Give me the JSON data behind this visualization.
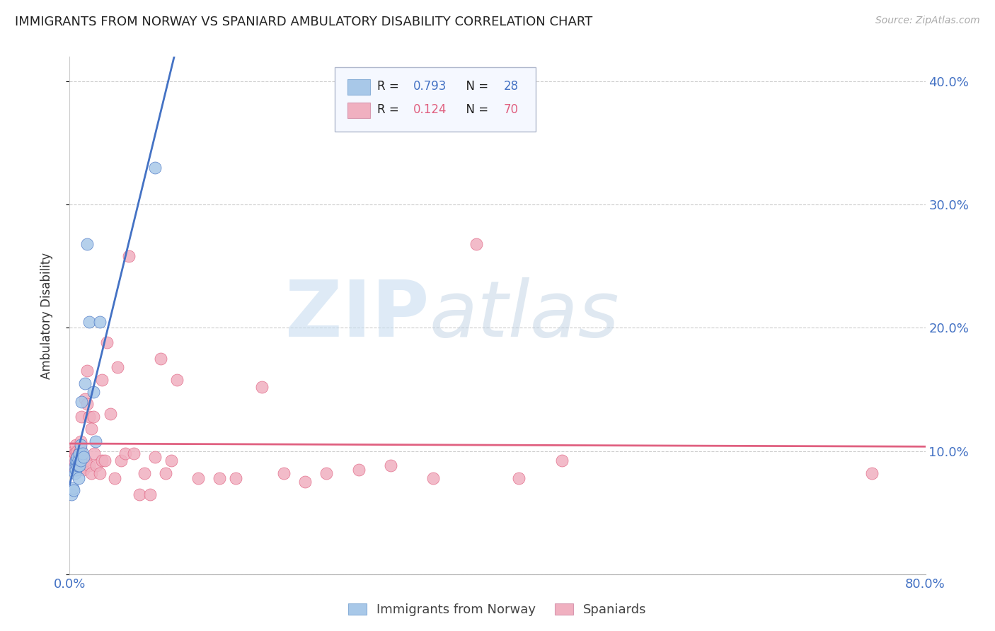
{
  "title": "IMMIGRANTS FROM NORWAY VS SPANIARD AMBULATORY DISABILITY CORRELATION CHART",
  "source": "Source: ZipAtlas.com",
  "ylabel": "Ambulatory Disability",
  "xlim": [
    0.0,
    0.8
  ],
  "ylim": [
    0.0,
    0.42
  ],
  "ytick_vals": [
    0.0,
    0.1,
    0.2,
    0.3,
    0.4
  ],
  "ytick_labels_right": [
    "",
    "10.0%",
    "20.0%",
    "30.0%",
    "40.0%"
  ],
  "norway_R": 0.793,
  "norway_N": 28,
  "spain_R": 0.124,
  "spain_N": 70,
  "norway_color": "#a8c8e8",
  "spain_color": "#f0b0c0",
  "norway_line_color": "#4472c4",
  "spain_line_color": "#e06080",
  "norway_x": [
    0.002,
    0.003,
    0.004,
    0.005,
    0.005,
    0.006,
    0.006,
    0.006,
    0.007,
    0.007,
    0.007,
    0.008,
    0.008,
    0.008,
    0.009,
    0.009,
    0.01,
    0.01,
    0.011,
    0.012,
    0.013,
    0.014,
    0.016,
    0.018,
    0.022,
    0.024,
    0.028,
    0.08
  ],
  "norway_y": [
    0.065,
    0.07,
    0.068,
    0.082,
    0.087,
    0.085,
    0.09,
    0.092,
    0.088,
    0.092,
    0.095,
    0.078,
    0.088,
    0.093,
    0.088,
    0.098,
    0.092,
    0.105,
    0.14,
    0.098,
    0.095,
    0.155,
    0.268,
    0.205,
    0.148,
    0.108,
    0.205,
    0.33
  ],
  "spain_x": [
    0.002,
    0.003,
    0.004,
    0.004,
    0.005,
    0.005,
    0.006,
    0.006,
    0.006,
    0.007,
    0.007,
    0.007,
    0.008,
    0.008,
    0.008,
    0.009,
    0.009,
    0.009,
    0.01,
    0.01,
    0.01,
    0.01,
    0.011,
    0.012,
    0.013,
    0.014,
    0.015,
    0.016,
    0.016,
    0.018,
    0.018,
    0.02,
    0.02,
    0.022,
    0.023,
    0.025,
    0.028,
    0.03,
    0.03,
    0.033,
    0.035,
    0.038,
    0.042,
    0.045,
    0.048,
    0.052,
    0.055,
    0.06,
    0.065,
    0.07,
    0.075,
    0.08,
    0.085,
    0.09,
    0.095,
    0.1,
    0.12,
    0.14,
    0.155,
    0.18,
    0.2,
    0.22,
    0.24,
    0.27,
    0.3,
    0.34,
    0.38,
    0.42,
    0.46,
    0.75
  ],
  "spain_y": [
    0.092,
    0.088,
    0.092,
    0.1,
    0.088,
    0.098,
    0.092,
    0.1,
    0.105,
    0.09,
    0.095,
    0.1,
    0.085,
    0.092,
    0.098,
    0.085,
    0.092,
    0.098,
    0.092,
    0.098,
    0.102,
    0.108,
    0.128,
    0.092,
    0.085,
    0.142,
    0.092,
    0.165,
    0.138,
    0.128,
    0.088,
    0.118,
    0.082,
    0.128,
    0.098,
    0.088,
    0.082,
    0.158,
    0.092,
    0.092,
    0.188,
    0.13,
    0.078,
    0.168,
    0.092,
    0.098,
    0.258,
    0.098,
    0.065,
    0.082,
    0.065,
    0.095,
    0.175,
    0.082,
    0.092,
    0.158,
    0.078,
    0.078,
    0.078,
    0.152,
    0.082,
    0.075,
    0.082,
    0.085,
    0.088,
    0.078,
    0.268,
    0.078,
    0.092,
    0.082
  ]
}
